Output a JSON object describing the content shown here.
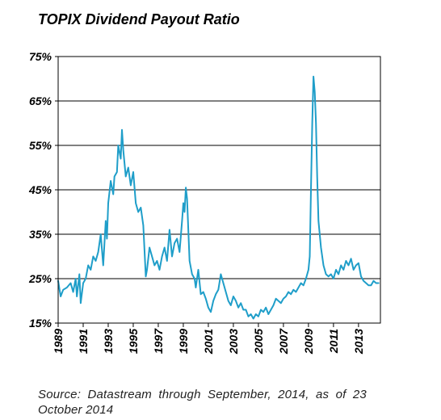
{
  "chart_data": {
    "type": "line",
    "title": "TOPIX Dividend Payout Ratio",
    "xlabel": "",
    "ylabel": "",
    "xlim": [
      1989,
      2014.75
    ],
    "ylim": [
      15,
      75
    ],
    "yticks": [
      15,
      25,
      35,
      45,
      55,
      65,
      75
    ],
    "ytick_labels": [
      "15%",
      "25%",
      "35%",
      "45%",
      "55%",
      "65%",
      "75%"
    ],
    "xticks": [
      1989,
      1991,
      1993,
      1995,
      1997,
      1999,
      2001,
      2003,
      2005,
      2007,
      2009,
      2011,
      2013
    ],
    "xtick_labels": [
      "1989",
      "1991",
      "1993",
      "1995",
      "1997",
      "1999",
      "2001",
      "2003",
      "2005",
      "2007",
      "2009",
      "2011",
      "2013"
    ],
    "grid": "horizontal",
    "line_color": "#1f9ec9",
    "series": [
      {
        "x": [
          1989.0,
          1989.2,
          1989.4,
          1989.7,
          1990.0,
          1990.2,
          1990.4,
          1990.5,
          1990.7,
          1990.8,
          1991.0,
          1991.2,
          1991.4,
          1991.6,
          1991.8,
          1992.0,
          1992.2,
          1992.4,
          1992.6,
          1992.8,
          1992.9,
          1993.0,
          1993.2,
          1993.4,
          1993.5,
          1993.7,
          1993.8,
          1994.0,
          1994.1,
          1994.2,
          1994.4,
          1994.6,
          1994.8,
          1995.0,
          1995.2,
          1995.4,
          1995.6,
          1995.8,
          1996.0,
          1996.1,
          1996.3,
          1996.5,
          1996.7,
          1996.9,
          1997.1,
          1997.3,
          1997.5,
          1997.7,
          1997.9,
          1998.1,
          1998.3,
          1998.5,
          1998.7,
          1998.9,
          1999.0,
          1999.1,
          1999.2,
          1999.3,
          1999.5,
          1999.7,
          1999.9,
          2000.0,
          2000.2,
          2000.4,
          2000.6,
          2000.8,
          2001.0,
          2001.2,
          2001.4,
          2001.6,
          2001.8,
          2002.0,
          2002.2,
          2002.4,
          2002.6,
          2002.8,
          2003.0,
          2003.2,
          2003.4,
          2003.6,
          2003.8,
          2004.0,
          2004.2,
          2004.4,
          2004.6,
          2004.8,
          2005.0,
          2005.2,
          2005.4,
          2005.6,
          2005.8,
          2006.0,
          2006.2,
          2006.4,
          2006.6,
          2006.8,
          2007.0,
          2007.2,
          2007.4,
          2007.6,
          2007.8,
          2008.0,
          2008.2,
          2008.4,
          2008.6,
          2008.8,
          2009.0,
          2009.1,
          2009.2,
          2009.3,
          2009.4,
          2009.5,
          2009.6,
          2009.7,
          2009.8,
          2010.0,
          2010.2,
          2010.4,
          2010.6,
          2010.8,
          2011.0,
          2011.2,
          2011.4,
          2011.6,
          2011.8,
          2012.0,
          2012.2,
          2012.4,
          2012.6,
          2012.8,
          2013.0,
          2013.2,
          2013.4,
          2013.6,
          2013.8,
          2014.0,
          2014.2,
          2014.4,
          2014.6
        ],
        "values": [
          24.5,
          21,
          22.5,
          23,
          24,
          22,
          25,
          21,
          26,
          19.5,
          24,
          25,
          28,
          27,
          30,
          29,
          31,
          35,
          28,
          38,
          34,
          42,
          47,
          44,
          48,
          49,
          55,
          52,
          58.5,
          54,
          48,
          50,
          46,
          49,
          42,
          40,
          41,
          37,
          25.5,
          27,
          32,
          30,
          28,
          29,
          27,
          30,
          32,
          29,
          36,
          30,
          33,
          34,
          31,
          38,
          42,
          40,
          45.5,
          43,
          29,
          26,
          25,
          23,
          27,
          21.5,
          22,
          20.5,
          18.5,
          17.5,
          20,
          21.5,
          22.5,
          26,
          24,
          22,
          20,
          19,
          21,
          20,
          18.5,
          19.5,
          18,
          18,
          16.5,
          17,
          16,
          17,
          16.5,
          18,
          17.5,
          18.5,
          17,
          18,
          19,
          20.5,
          20,
          19.5,
          20.5,
          21,
          22,
          21.5,
          22.5,
          22,
          23,
          24,
          23.5,
          25,
          27,
          30,
          45,
          60,
          70.5,
          67,
          60,
          48,
          38,
          32,
          28,
          26,
          25.5,
          26,
          25,
          27,
          26,
          28,
          27,
          29,
          28,
          29.5,
          27,
          28,
          28.5,
          25.5,
          24.5,
          24,
          23.5,
          23.5,
          24.5,
          24,
          24
        ]
      }
    ]
  },
  "source_line1": "Source:  Datastream  through  September,  2014,  as  of  23",
  "source_line2": "October 2014"
}
